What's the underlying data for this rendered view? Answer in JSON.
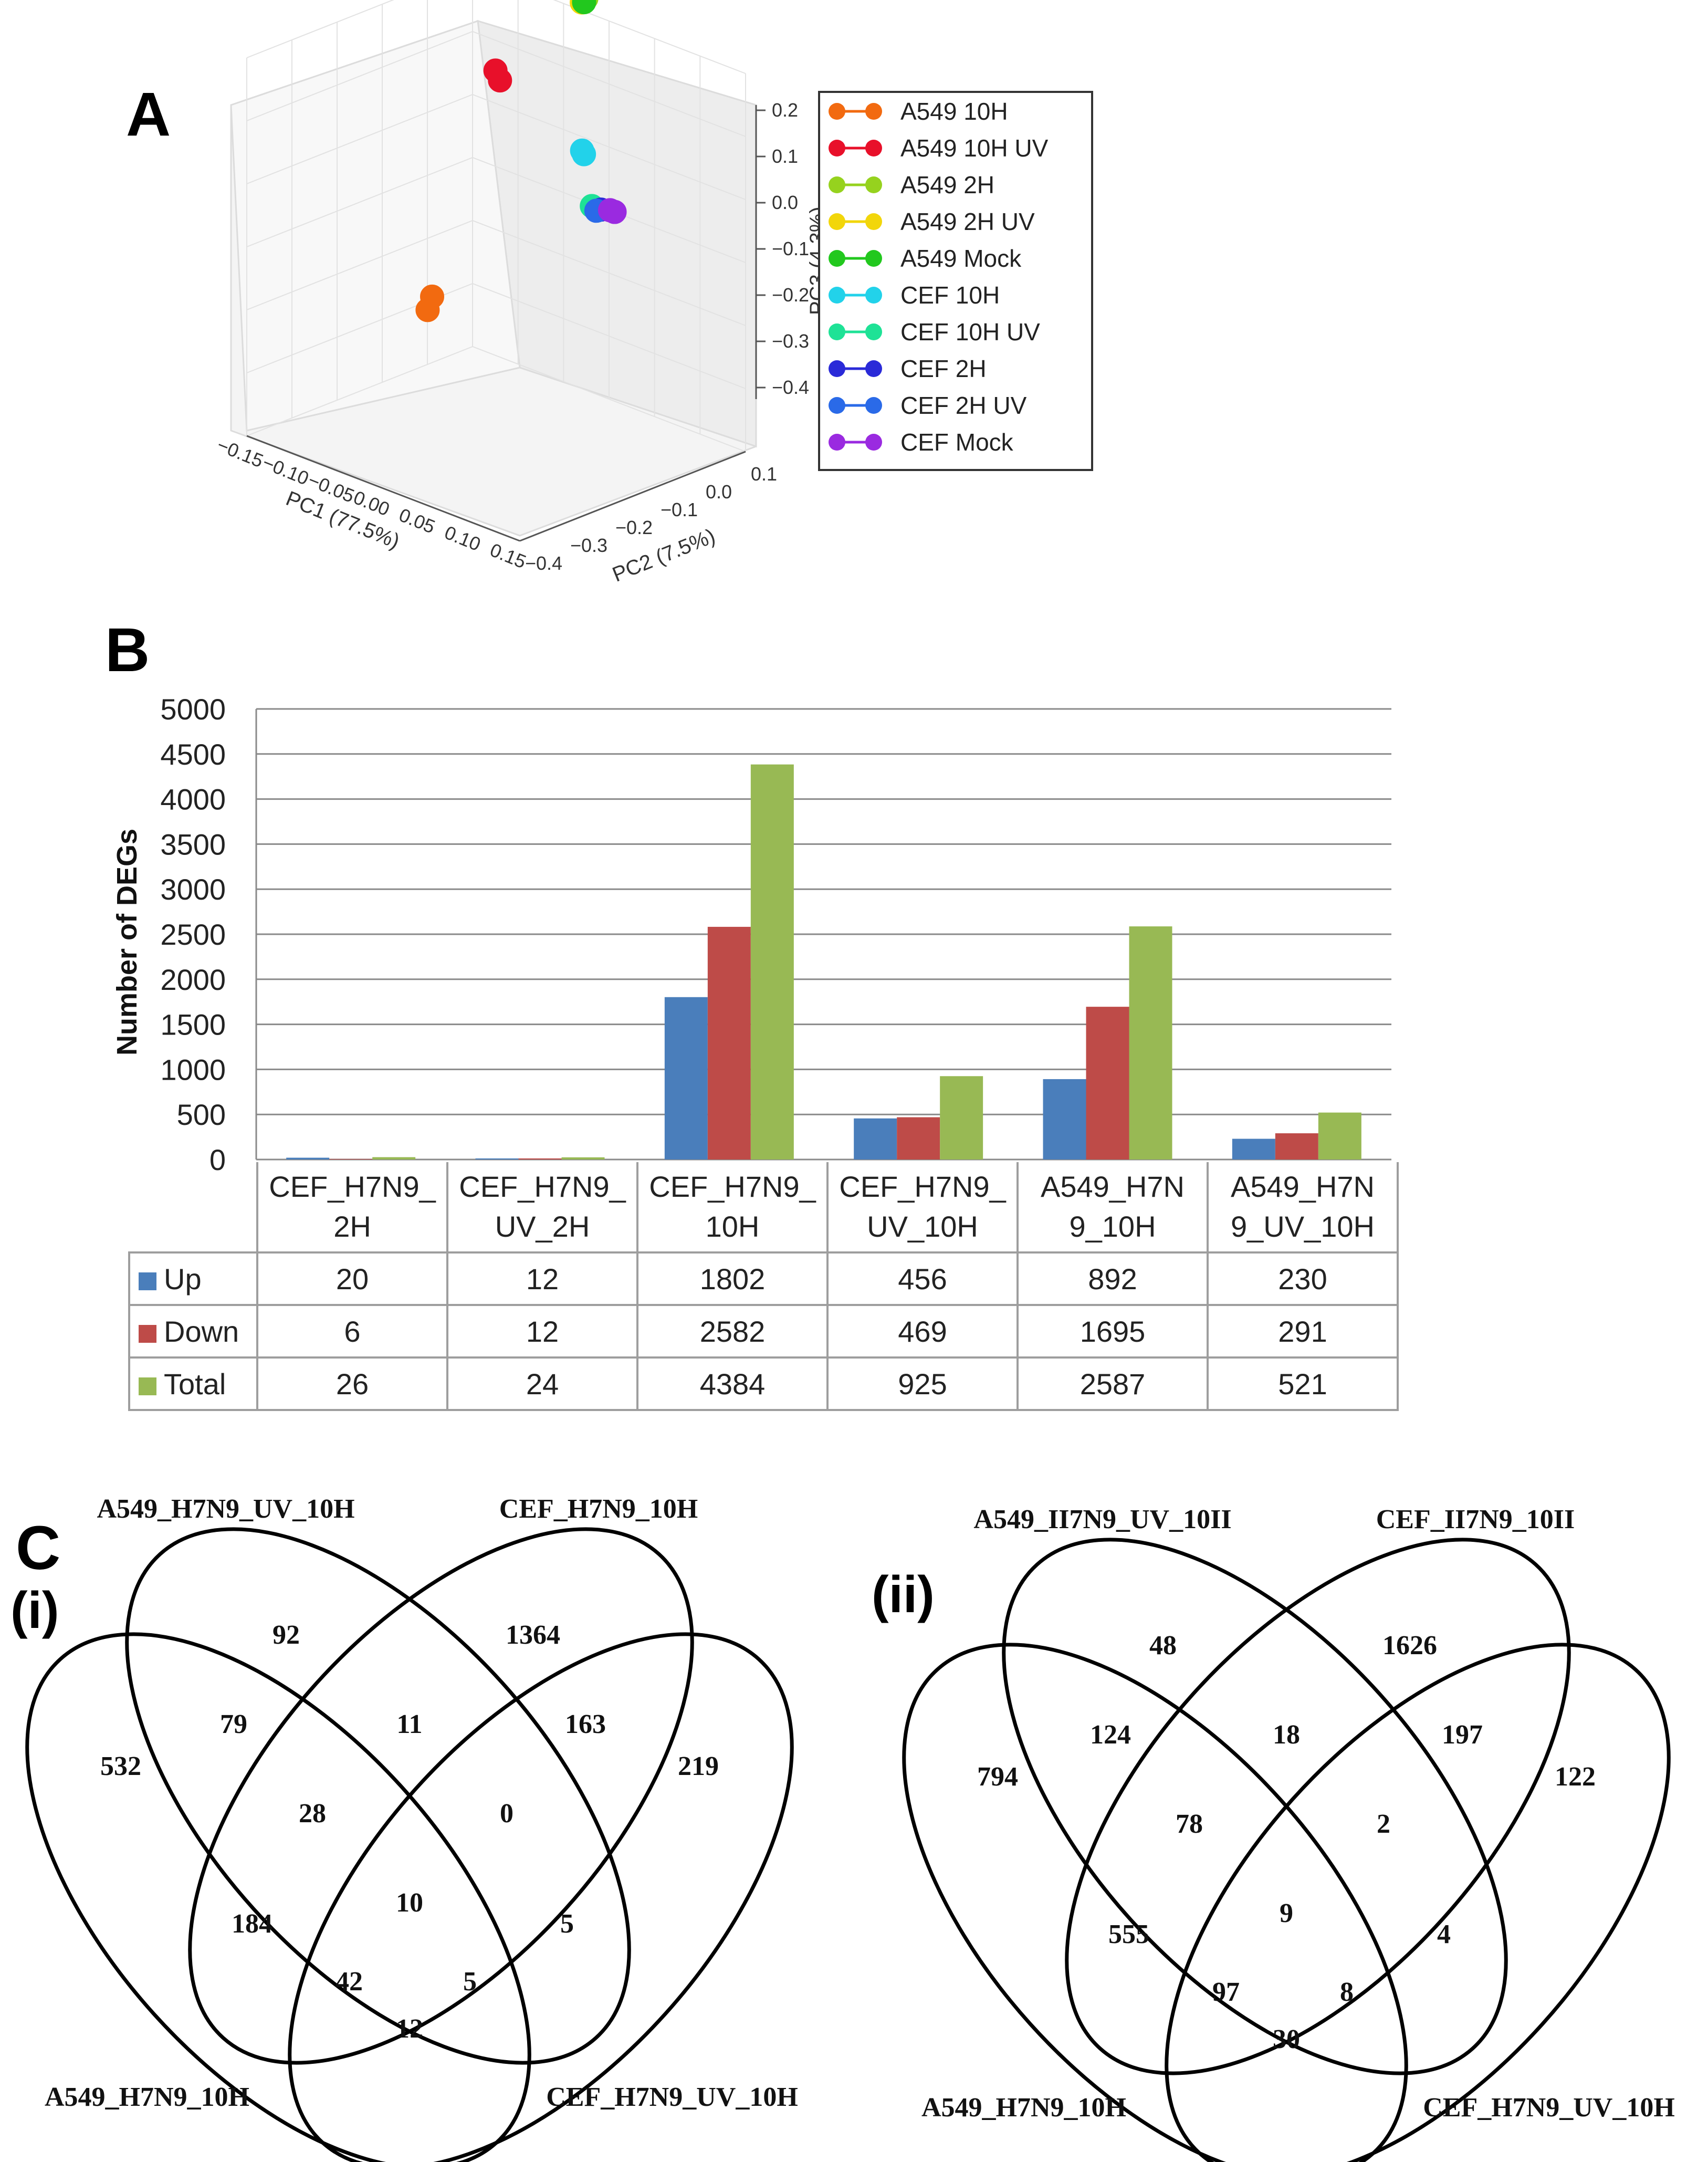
{
  "panels": {
    "a": {
      "letter": "A"
    },
    "b": {
      "letter": "B"
    },
    "c": {
      "letter": "C",
      "sub_i": "(i)",
      "sub_ii": "(ii)"
    }
  },
  "chart_data": [
    {
      "id": "pca",
      "type": "scatter",
      "title": "",
      "xlabel": "PC1 (77.5%)",
      "ylabel": "PC2 (7.5%)",
      "zlabel": "PC3 (4.3%)",
      "x_ticks": [
        "−0.15",
        "−0.10",
        "−0.05",
        "0.00",
        "0.05",
        "0.10",
        "0.15"
      ],
      "y_ticks": [
        "−0.4",
        "−0.3",
        "−0.2",
        "−0.1",
        "0.0",
        "0.1"
      ],
      "z_ticks": [
        "0.2",
        "0.1",
        "0.0",
        "−0.1",
        "−0.2",
        "−0.3",
        "−0.4"
      ],
      "xlim": [
        -0.15,
        0.15
      ],
      "ylim": [
        -0.4,
        0.1
      ],
      "zlim": [
        -0.45,
        0.2
      ],
      "legend_position": "right",
      "series": [
        {
          "name": "A549 10H",
          "color": "#f26a10",
          "points": [
            [
              -0.12,
              -0.05,
              -0.3
            ],
            [
              -0.12,
              -0.06,
              -0.32
            ]
          ]
        },
        {
          "name": "A549 10H UV",
          "color": "#e8102a",
          "points": [
            [
              -0.1,
              0.05,
              0.07
            ],
            [
              -0.1,
              0.06,
              0.05
            ]
          ]
        },
        {
          "name": "A549 2H",
          "color": "#96d21e",
          "points": [
            [
              -0.02,
              0.09,
              0.23
            ]
          ]
        },
        {
          "name": "A549 2H UV",
          "color": "#f2d60a",
          "points": [
            [
              -0.02,
              0.09,
              0.24
            ],
            [
              -0.025,
              0.09,
              0.22
            ]
          ]
        },
        {
          "name": "A549 Mock",
          "color": "#22c81e",
          "points": [
            [
              -0.02,
              0.085,
              0.225
            ]
          ]
        },
        {
          "name": "CEF 10H",
          "color": "#22d2ea",
          "points": [
            [
              0.02,
              0.0,
              0.02
            ],
            [
              0.022,
              0.0,
              0.015
            ]
          ]
        },
        {
          "name": "CEF 10H UV",
          "color": "#1ee296",
          "points": [
            [
              0.12,
              -0.18,
              0.04
            ]
          ]
        },
        {
          "name": "CEF 2H",
          "color": "#2a2ad8",
          "points": [
            [
              0.13,
              -0.18,
              0.04
            ]
          ]
        },
        {
          "name": "CEF 2H UV",
          "color": "#2a6ae8",
          "points": [
            [
              0.125,
              -0.18,
              0.035
            ]
          ]
        },
        {
          "name": "CEF Mock",
          "color": "#9a2ae0",
          "points": [
            [
              0.14,
              -0.18,
              0.045
            ],
            [
              0.145,
              -0.18,
              0.045
            ]
          ]
        }
      ]
    },
    {
      "id": "deg_bar",
      "type": "bar",
      "title": "",
      "xlabel": "",
      "ylabel": "Number of DEGs",
      "ylim": [
        0,
        5000
      ],
      "y_ticks": [
        "0",
        "500",
        "1000",
        "1500",
        "2000",
        "2500",
        "3000",
        "3500",
        "4000",
        "4500",
        "5000"
      ],
      "grid": true,
      "categories": [
        {
          "line1": "CEF_H7N9_",
          "line2": "2H"
        },
        {
          "line1": "CEF_H7N9_",
          "line2": "UV_2H"
        },
        {
          "line1": "CEF_H7N9_",
          "line2": "10H"
        },
        {
          "line1": "CEF_H7N9_",
          "line2": "UV_10H"
        },
        {
          "line1": "A549_H7N",
          "line2": "9_10H"
        },
        {
          "line1": "A549_H7N",
          "line2": "9_UV_10H"
        }
      ],
      "series": [
        {
          "name": "Up",
          "color": "#4a7ebb",
          "values": [
            20,
            12,
            1802,
            456,
            892,
            230
          ]
        },
        {
          "name": "Down",
          "color": "#be4b48",
          "values": [
            6,
            12,
            2582,
            469,
            1695,
            291
          ]
        },
        {
          "name": "Total",
          "color": "#98b954",
          "values": [
            26,
            24,
            4384,
            925,
            2587,
            521
          ]
        }
      ]
    },
    {
      "id": "venn_i",
      "type": "venn",
      "sets": {
        "top_left": "A549_H7N9_UV_10H",
        "top_right": "CEF_H7N9_10H",
        "bottom_left": "A549_H7N9_10H",
        "bottom_right": "CEF_H7N9_UV_10H"
      },
      "regions": {
        "uv_only": "92",
        "cef10_only": "1364",
        "a549_only": "532",
        "cefuv_only": "219",
        "uv_a549": "79",
        "uv_cef10": "11",
        "cef10_cefuv": "163",
        "uv_a549_cef10": "28",
        "uv_cef10_cefuv": "0",
        "a549_cef10": "184",
        "all4": "10",
        "uv_cefuv": "5",
        "a549_cef10_cefuv": "42",
        "uv_a549_cefuv": "5",
        "a549_cefuv": "12"
      }
    },
    {
      "id": "venn_ii",
      "type": "venn",
      "sets": {
        "top_left": "A549_II7N9_UV_10II",
        "top_right": "CEF_II7N9_10II",
        "bottom_left": "A549_H7N9_10H",
        "bottom_right": "CEF_H7N9_UV_10H"
      },
      "regions": {
        "uv_only": "48",
        "cef10_only": "1626",
        "a549_only": "794",
        "cefuv_only": "122",
        "uv_a549": "124",
        "uv_cef10": "18",
        "cef10_cefuv": "197",
        "uv_a549_cef10": "78",
        "uv_cef10_cefuv": "2",
        "a549_cef10": "555",
        "all4": "9",
        "uv_cefuv": "4",
        "a549_cef10_cefuv": "97",
        "uv_a549_cefuv": "8",
        "a549_cefuv": "30"
      }
    }
  ]
}
